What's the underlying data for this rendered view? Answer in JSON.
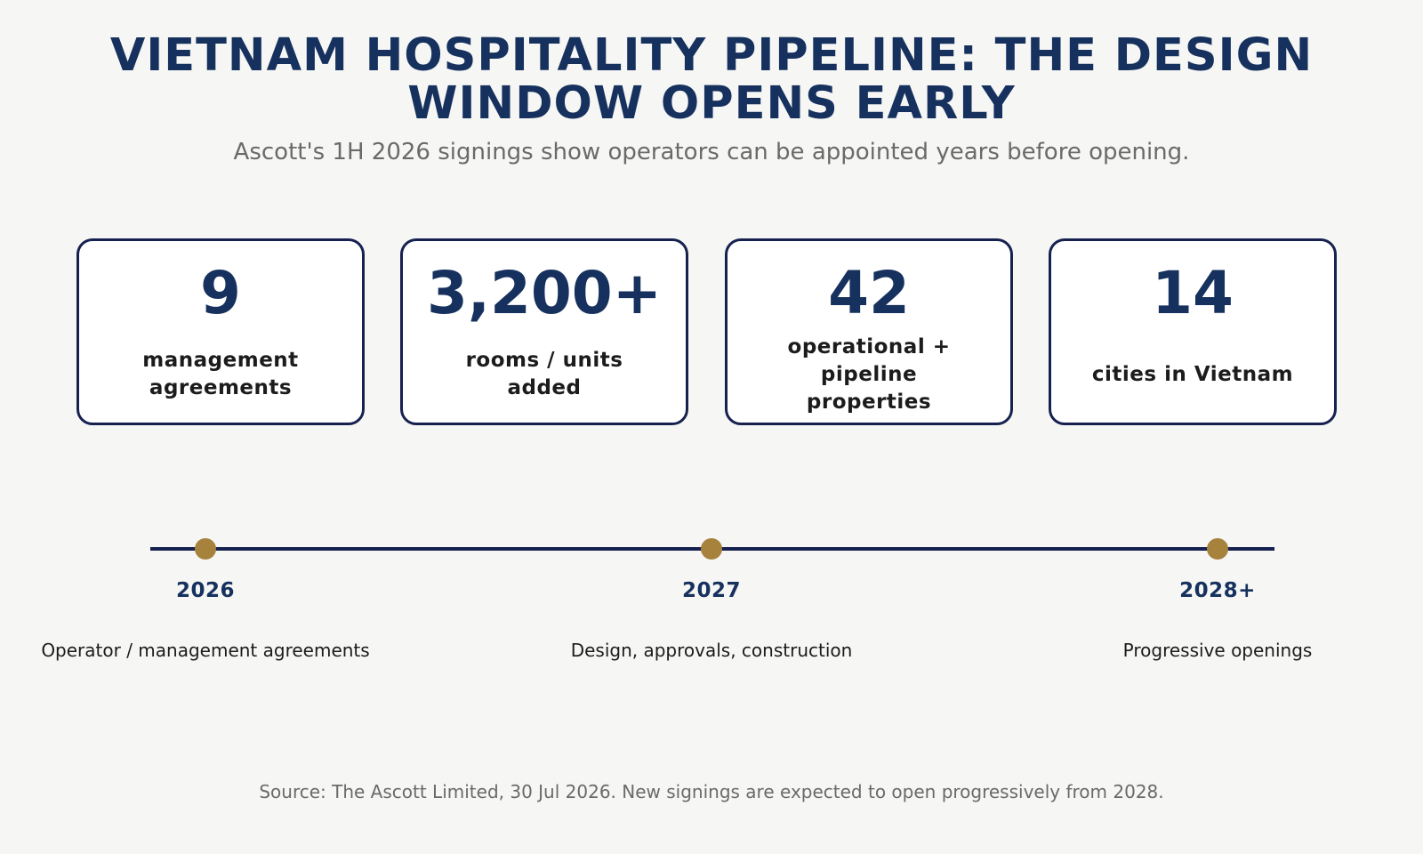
{
  "header": {
    "title": "VIETNAM HOSPITALITY PIPELINE: THE DESIGN WINDOW OPENS EARLY",
    "subtitle": "Ascott's 1H 2026 signings show operators can be appointed years before opening."
  },
  "stats": [
    {
      "value": "9",
      "label": "management agreements"
    },
    {
      "value": "3,200+",
      "label": "rooms / units added"
    },
    {
      "value": "42",
      "label": "operational + pipeline properties"
    },
    {
      "value": "14",
      "label": "cities in Vietnam"
    }
  ],
  "timeline": [
    {
      "year": "2026",
      "description": "Operator / management agreements"
    },
    {
      "year": "2027",
      "description": "Design, approvals, construction"
    },
    {
      "year": "2028+",
      "description": "Progressive openings"
    }
  ],
  "footer": {
    "source": "Source: The Ascott Limited, 30 Jul 2026. New signings are expected to open progressively from 2028."
  },
  "colors": {
    "title": "#16315e",
    "card_border": "#16214f",
    "timeline_line": "#16214f",
    "milestone_dot": "#a7823c",
    "background": "#f6f6f4"
  }
}
